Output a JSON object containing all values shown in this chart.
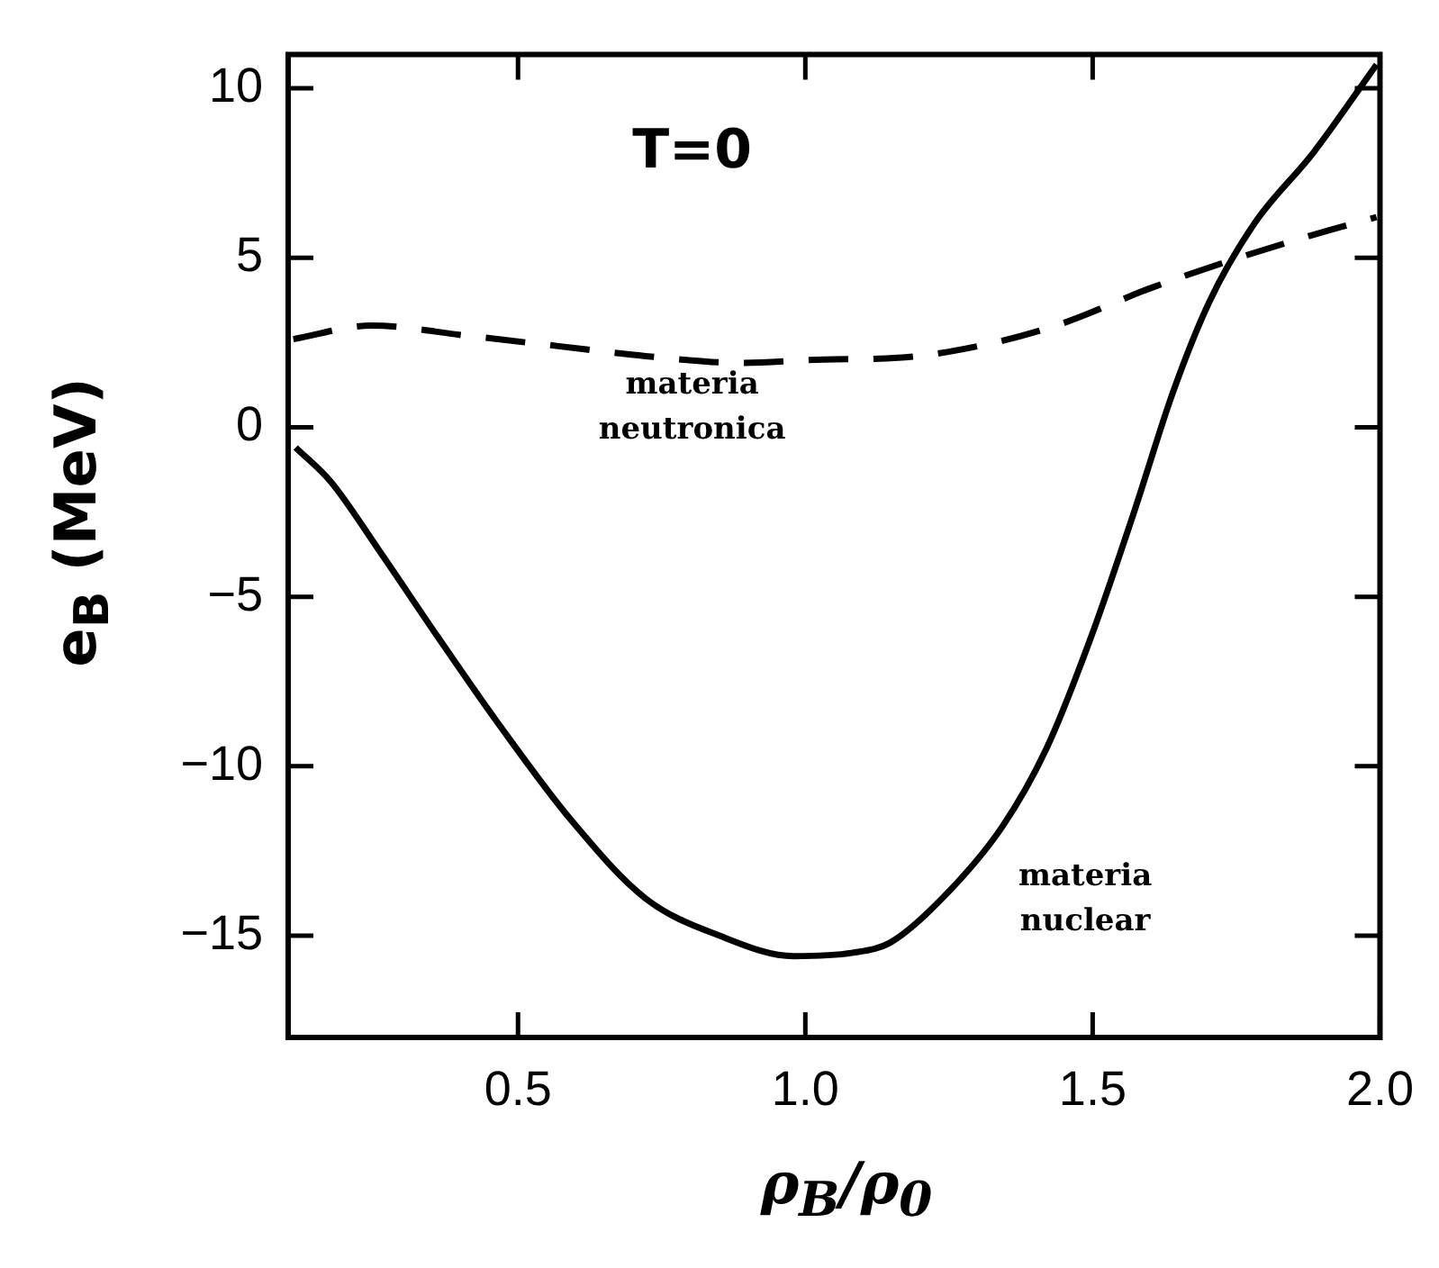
{
  "chart_data": {
    "type": "line",
    "xlabel": "ρ$_{B}$/ρ$_{0}$",
    "ylabel": "e$_{B}$ (MeV)",
    "xlim": [
      0.1,
      2.0
    ],
    "xticks": [
      {
        "value": 0.5,
        "label": "0.5"
      },
      {
        "value": 1.0,
        "label": "1.0"
      },
      {
        "value": 1.5,
        "label": "1.5"
      },
      {
        "value": 2.0,
        "label": "2.0"
      }
    ],
    "ylim": [
      -18,
      11
    ],
    "yticks": [
      -15,
      -10,
      -5,
      0,
      5,
      10
    ],
    "grid": false,
    "legend": false,
    "marker": "none",
    "series": [
      {
        "name": "materia\nnuclear",
        "color": "#000000",
        "line_style": "solid",
        "x": [
          0.113,
          0.174,
          0.257,
          0.361,
          0.464,
          0.593,
          0.722,
          0.851,
          0.98,
          1.083,
          1.148,
          1.238,
          1.342,
          1.419,
          1.497,
          1.574,
          1.639,
          1.703,
          1.781,
          1.884,
          1.994
        ],
        "values": [
          -0.6,
          -1.6,
          -3.6,
          -6.2,
          -8.7,
          -11.6,
          -13.9,
          -15.0,
          -15.6,
          -15.5,
          -15.2,
          -13.9,
          -11.8,
          -9.5,
          -6.2,
          -2.4,
          1.0,
          3.7,
          6.0,
          8.1,
          10.7
        ]
      },
      {
        "name": "materia\nneutronica",
        "color": "#000000",
        "line_style": "dashed",
        "x": [
          0.109,
          0.245,
          0.412,
          0.567,
          0.722,
          0.89,
          1.032,
          1.161,
          1.303,
          1.445,
          1.6,
          1.754,
          1.909,
          1.994
        ],
        "values": [
          2.6,
          3.0,
          2.7,
          2.4,
          2.1,
          1.9,
          2.0,
          2.05,
          2.4,
          3.05,
          4.1,
          5.0,
          5.8,
          6.2
        ]
      }
    ],
    "annotations": [
      "T=0"
    ]
  }
}
